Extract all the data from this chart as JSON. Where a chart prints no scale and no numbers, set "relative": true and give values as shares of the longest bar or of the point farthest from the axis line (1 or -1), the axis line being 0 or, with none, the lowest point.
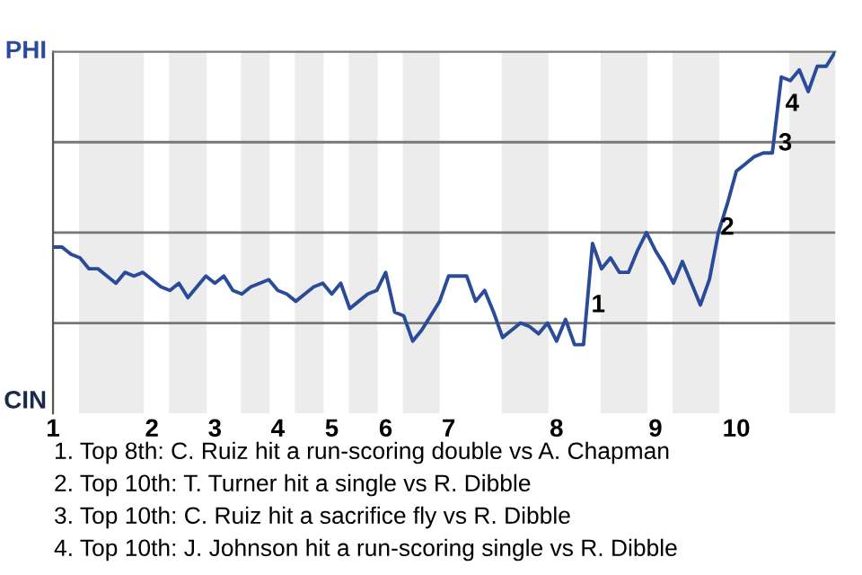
{
  "chart_data": {
    "type": "line",
    "relative": true,
    "categories": [
      "1",
      null,
      null,
      null,
      null,
      null,
      null,
      null,
      null,
      null,
      null,
      "2",
      null,
      null,
      null,
      null,
      null,
      null,
      "3",
      null,
      null,
      null,
      null,
      null,
      null,
      "4",
      null,
      null,
      null,
      null,
      null,
      "5",
      null,
      null,
      null,
      null,
      null,
      "6",
      null,
      null,
      null,
      null,
      null,
      null,
      "7",
      null,
      null,
      null,
      null,
      null,
      null,
      null,
      null,
      null,
      null,
      null,
      "8",
      null,
      null,
      null,
      null,
      null,
      null,
      null,
      null,
      null,
      null,
      "9",
      null,
      null,
      null,
      null,
      null,
      null,
      null,
      null,
      "10",
      null,
      null,
      null,
      null,
      null,
      null,
      null,
      null,
      null,
      null,
      null
    ],
    "series": [
      {
        "color": "#2a4a9a",
        "values": [
          0.46,
          0.46,
          0.44,
          0.43,
          0.4,
          0.4,
          0.38,
          0.36,
          0.39,
          0.38,
          0.39,
          0.37,
          0.35,
          0.34,
          0.36,
          0.32,
          0.35,
          0.38,
          0.36,
          0.38,
          0.34,
          0.33,
          0.35,
          0.36,
          0.37,
          0.34,
          0.33,
          0.31,
          0.33,
          0.35,
          0.36,
          0.33,
          0.36,
          0.29,
          0.31,
          0.33,
          0.34,
          0.39,
          0.28,
          0.27,
          0.2,
          0.23,
          0.27,
          0.31,
          0.38,
          0.38,
          0.38,
          0.31,
          0.34,
          0.28,
          0.21,
          0.23,
          0.25,
          0.24,
          0.22,
          0.25,
          0.2,
          0.26,
          0.19,
          0.19,
          0.47,
          0.4,
          0.43,
          0.39,
          0.39,
          0.45,
          0.5,
          0.45,
          0.41,
          0.36,
          0.42,
          0.36,
          0.3,
          0.37,
          0.5,
          0.58,
          0.67,
          0.69,
          0.71,
          0.72,
          0.72,
          0.93,
          0.92,
          0.95,
          0.89,
          0.96,
          0.96,
          1.0
        ]
      }
    ],
    "marker": "none",
    "line_style": "solid",
    "ref_lines": [
      {
        "axis": "y",
        "value": 0.25,
        "color": "#777777"
      },
      {
        "axis": "y",
        "value": 0.5,
        "color": "#777777"
      },
      {
        "axis": "y",
        "value": 0.75,
        "color": "#777777"
      }
    ],
    "annotations": [
      "1",
      "2",
      "3",
      "4",
      "PHI",
      "CIN",
      "1. Top 8th: C. Ruiz hit a run-scoring double vs A. Chapman",
      "2. Top 10th: T. Turner hit a single vs R. Dibble",
      "3. Top 10th: C. Ruiz hit a sacrifice fly vs R. Dibble",
      "4. Top 10th: J. Johnson hit a run-scoring single vs R. Dibble"
    ]
  }
}
